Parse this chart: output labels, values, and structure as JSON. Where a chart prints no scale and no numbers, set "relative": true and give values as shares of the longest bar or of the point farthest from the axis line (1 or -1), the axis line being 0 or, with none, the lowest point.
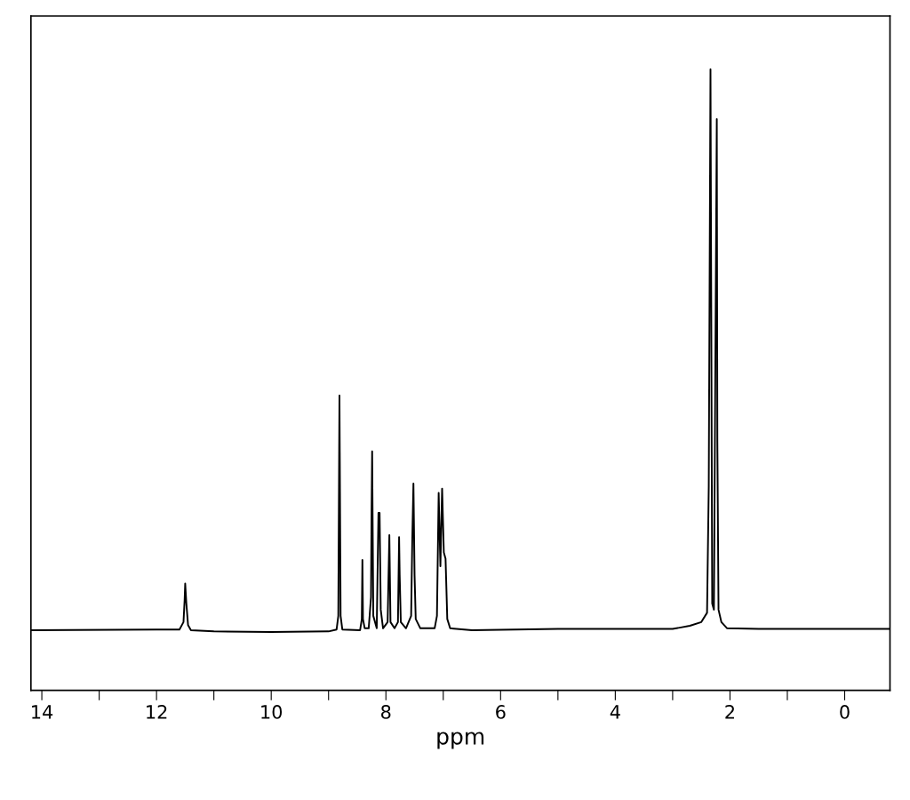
{
  "chart_data": {
    "type": "line",
    "xlabel": "ppm",
    "relative": true,
    "grid": false,
    "legend": false,
    "marker": "none",
    "line_style": "solid",
    "tick_labels": "x",
    "xlim": [
      14.19,
      -0.79
    ],
    "xticks": [
      14,
      {
        "value": 13,
        "label": null
      },
      12,
      {
        "value": 11,
        "label": null
      },
      10,
      {
        "value": 9,
        "label": null
      },
      8,
      {
        "value": 7,
        "label": null
      },
      6,
      {
        "value": 5,
        "label": null
      },
      4,
      {
        "value": 3,
        "label": null
      },
      2,
      {
        "value": 1,
        "label": null
      },
      0
    ],
    "series": [
      {
        "color": "#000000",
        "x": [
          14.19,
          12.0,
          11.6,
          11.53,
          11.51,
          11.5,
          11.48,
          11.45,
          11.4,
          11.0,
          10.0,
          9.0,
          8.86,
          8.83,
          8.81,
          8.79,
          8.76,
          8.45,
          8.42,
          8.41,
          8.4,
          8.37,
          8.3,
          8.26,
          8.25,
          8.24,
          8.22,
          8.16,
          8.13,
          8.11,
          8.09,
          8.05,
          7.97,
          7.94,
          7.92,
          7.85,
          7.79,
          7.77,
          7.76,
          7.74,
          7.65,
          7.56,
          7.54,
          7.52,
          7.5,
          7.48,
          7.4,
          7.15,
          7.11,
          7.08,
          7.05,
          7.02,
          6.99,
          6.96,
          6.93,
          6.88,
          6.5,
          5.0,
          4.0,
          3.0,
          2.7,
          2.5,
          2.4,
          2.37,
          2.34,
          2.31,
          2.28,
          2.23,
          2.22,
          2.2,
          2.15,
          2.05,
          1.5,
          0.0,
          -0.79
        ],
        "values": [
          0.097,
          0.098,
          0.098,
          0.11,
          0.146,
          0.172,
          0.14,
          0.105,
          0.097,
          0.095,
          0.094,
          0.095,
          0.098,
          0.12,
          0.475,
          0.12,
          0.098,
          0.097,
          0.115,
          0.21,
          0.115,
          0.1,
          0.1,
          0.15,
          0.288,
          0.385,
          0.12,
          0.1,
          0.286,
          0.286,
          0.13,
          0.1,
          0.11,
          0.25,
          0.11,
          0.1,
          0.11,
          0.247,
          0.186,
          0.11,
          0.1,
          0.12,
          0.243,
          0.333,
          0.185,
          0.115,
          0.1,
          0.1,
          0.12,
          0.318,
          0.2,
          0.325,
          0.222,
          0.212,
          0.115,
          0.1,
          0.097,
          0.099,
          0.099,
          0.099,
          0.104,
          0.11,
          0.125,
          0.329,
          1.0,
          0.14,
          0.13,
          0.92,
          0.4,
          0.13,
          0.11,
          0.1,
          0.099,
          0.099,
          0.099
        ]
      }
    ]
  }
}
